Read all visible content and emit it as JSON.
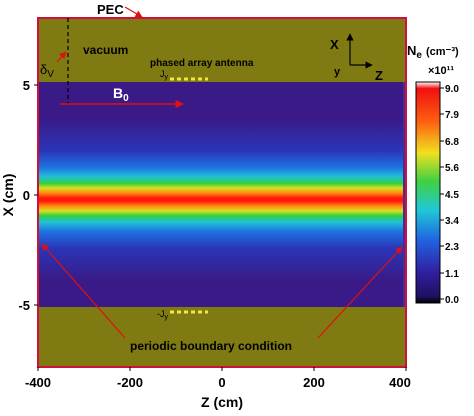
{
  "figure": {
    "top_label": "PEC",
    "vacuum_label": "vacuum",
    "delta_base": "δ",
    "delta_sub": "V",
    "antenna_label": "phased array antenna",
    "jy_top_base": "J",
    "jy_top_sub": "y",
    "jy_bottom_base": "-J",
    "jy_bottom_sub": "y",
    "b0_base": "B",
    "b0_sub": "0",
    "boundary_label": "periodic boundary condition",
    "coord_x": "X",
    "coord_y": "y",
    "coord_z": "Z"
  },
  "axes": {
    "xlabel": "Z (cm)",
    "ylabel": "X (cm)",
    "xticks": [
      "-400",
      "-200",
      "0",
      "200",
      "400"
    ],
    "yticks": [
      "5",
      "0",
      "-5"
    ]
  },
  "colorbar": {
    "title_base": "N",
    "title_sub": "e",
    "title_units": "(cm⁻³)",
    "multiplier": "×10¹¹",
    "ticks": [
      "9.0",
      "7.9",
      "6.8",
      "5.6",
      "4.5",
      "3.4",
      "2.3",
      "1.1",
      "0.0"
    ]
  },
  "colors": {
    "plasma_background": "#3a1a86",
    "vacuum_region": "#807a12",
    "pec_border": "#d0103a",
    "annotation_red": "#e01010",
    "antenna_yellow": "#f5e642"
  }
}
